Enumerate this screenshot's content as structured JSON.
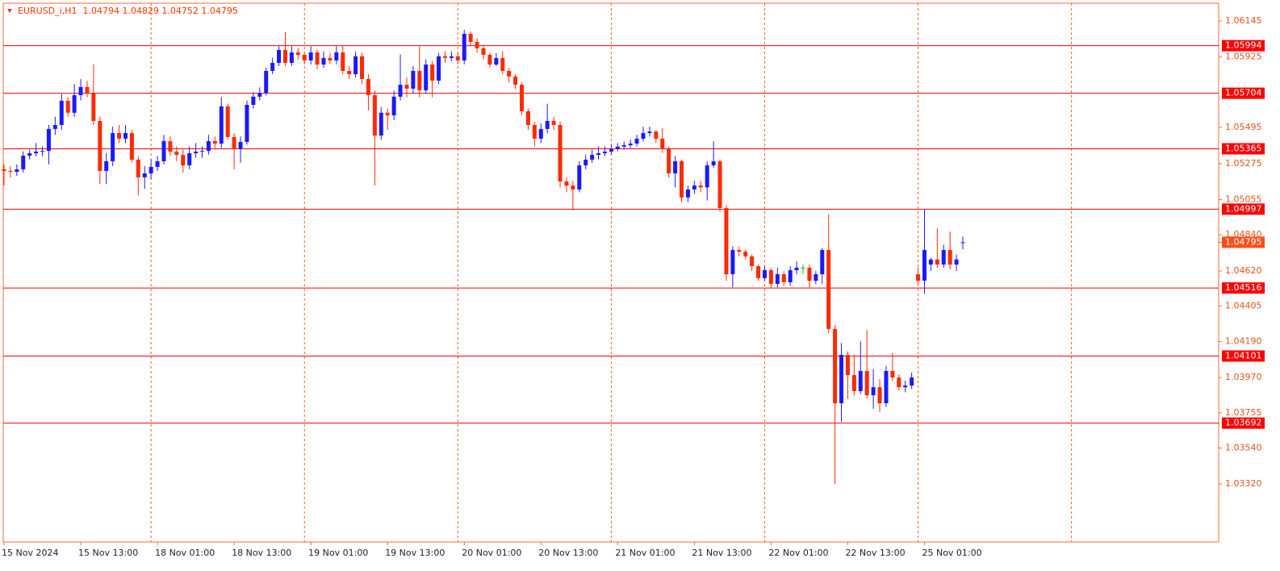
{
  "chart_data": {
    "type": "candlestick",
    "title": "EURUSD_i,H1  1.04794 1.04829 1.04752 1.04795",
    "categories": [
      "15 Nov 2024",
      null,
      null,
      null,
      null,
      null,
      null,
      null,
      null,
      null,
      null,
      null,
      "15 Nov 13:00",
      null,
      null,
      null,
      null,
      null,
      null,
      null,
      null,
      null,
      null,
      null,
      "18 Nov 01:00",
      null,
      null,
      null,
      null,
      null,
      null,
      null,
      null,
      null,
      null,
      null,
      "18 Nov 13:00",
      null,
      null,
      null,
      null,
      null,
      null,
      null,
      null,
      null,
      null,
      null,
      "19 Nov 01:00",
      null,
      null,
      null,
      null,
      null,
      null,
      null,
      null,
      null,
      null,
      null,
      "19 Nov 13:00",
      null,
      null,
      null,
      null,
      null,
      null,
      null,
      null,
      null,
      null,
      null,
      "20 Nov 01:00",
      null,
      null,
      null,
      null,
      null,
      null,
      null,
      null,
      null,
      null,
      null,
      "20 Nov 13:00",
      null,
      null,
      null,
      null,
      null,
      null,
      null,
      null,
      null,
      null,
      null,
      "21 Nov 01:00",
      null,
      null,
      null,
      null,
      null,
      null,
      null,
      null,
      null,
      null,
      null,
      "21 Nov 13:00",
      null,
      null,
      null,
      null,
      null,
      null,
      null,
      null,
      null,
      null,
      null,
      "22 Nov 01:00",
      null,
      null,
      null,
      null,
      null,
      null,
      null,
      null,
      null,
      null,
      null,
      "22 Nov 13:00",
      null,
      null,
      null,
      null,
      null,
      null,
      null,
      null,
      null,
      null,
      null,
      "25 Nov 01:00",
      null,
      null,
      null,
      null,
      null,
      null
    ],
    "ohlc": [
      [
        1.0524,
        1.0527,
        1.05141,
        1.0523
      ],
      [
        1.0523,
        1.0526,
        1.0519,
        1.05225
      ],
      [
        1.05225,
        1.0527,
        1.052,
        1.0524
      ],
      [
        1.0524,
        1.0535,
        1.0522,
        1.05323
      ],
      [
        1.05323,
        1.0536,
        1.053,
        1.05338
      ],
      [
        1.05338,
        1.054,
        1.0532,
        1.05348
      ],
      [
        1.05348,
        1.0538,
        1.0532,
        1.05352
      ],
      [
        1.05352,
        1.0551,
        1.0527,
        1.05486
      ],
      [
        1.05486,
        1.0556,
        1.0545,
        1.0551
      ],
      [
        1.0551,
        1.057,
        1.0548,
        1.05658
      ],
      [
        1.05658,
        1.0568,
        1.0556,
        1.05585
      ],
      [
        1.05585,
        1.0576,
        1.0556,
        1.05692
      ],
      [
        1.05692,
        1.0579,
        1.0566,
        1.05742
      ],
      [
        1.05742,
        1.0578,
        1.0568,
        1.05707
      ],
      [
        1.05707,
        1.0588,
        1.0551,
        1.05535
      ],
      [
        1.05535,
        1.0556,
        1.0515,
        1.0523
      ],
      [
        1.0523,
        1.0534,
        1.0515,
        1.05289
      ],
      [
        1.05289,
        1.055,
        1.0526,
        1.05461
      ],
      [
        1.05461,
        1.0551,
        1.054,
        1.05427
      ],
      [
        1.05427,
        1.0551,
        1.054,
        1.05461
      ],
      [
        1.05461,
        1.0548,
        1.0528,
        1.05299
      ],
      [
        1.05299,
        1.0532,
        1.0508,
        1.05191
      ],
      [
        1.05191,
        1.0526,
        1.0512,
        1.05215
      ],
      [
        1.05215,
        1.053,
        1.0518,
        1.05255
      ],
      [
        1.05255,
        1.0532,
        1.0523,
        1.05289
      ],
      [
        1.05289,
        1.0545,
        1.0527,
        1.05412
      ],
      [
        1.05412,
        1.0544,
        1.0532,
        1.05348
      ],
      [
        1.05348,
        1.0538,
        1.0529,
        1.05328
      ],
      [
        1.05328,
        1.0536,
        1.0522,
        1.05264
      ],
      [
        1.05264,
        1.0538,
        1.0524,
        1.05338
      ],
      [
        1.05338,
        1.054,
        1.0531,
        1.05348
      ],
      [
        1.05348,
        1.0538,
        1.0531,
        1.05352
      ],
      [
        1.05352,
        1.0545,
        1.0533,
        1.05412
      ],
      [
        1.05412,
        1.0544,
        1.0537,
        1.05397
      ],
      [
        1.05397,
        1.0568,
        1.0537,
        1.05624
      ],
      [
        1.05624,
        1.0564,
        1.0542,
        1.05437
      ],
      [
        1.05437,
        1.0546,
        1.0524,
        1.05363
      ],
      [
        1.05363,
        1.0544,
        1.0528,
        1.05407
      ],
      [
        1.05407,
        1.0566,
        1.0539,
        1.05633
      ],
      [
        1.05633,
        1.0571,
        1.0561,
        1.05683
      ],
      [
        1.05683,
        1.0574,
        1.0566,
        1.05707
      ],
      [
        1.05707,
        1.0586,
        1.0569,
        1.0584
      ],
      [
        1.0584,
        1.0592,
        1.0582,
        1.05889
      ],
      [
        1.05889,
        1.0599,
        1.0587,
        1.05968
      ],
      [
        1.05968,
        1.06076,
        1.0587,
        1.05889
      ],
      [
        1.05889,
        1.0599,
        1.0587,
        1.05953
      ],
      [
        1.05953,
        1.0598,
        1.0591,
        1.05938
      ],
      [
        1.05938,
        1.0595,
        1.0588,
        1.05904
      ],
      [
        1.05904,
        1.0599,
        1.0588,
        1.05953
      ],
      [
        1.05953,
        1.0597,
        1.0585,
        1.05879
      ],
      [
        1.05879,
        1.0596,
        1.0586,
        1.05919
      ],
      [
        1.05919,
        1.0595,
        1.0588,
        1.05904
      ],
      [
        1.05904,
        1.0599,
        1.0588,
        1.05953
      ],
      [
        1.05953,
        1.0599,
        1.0582,
        1.0584
      ],
      [
        1.0584,
        1.0587,
        1.0579,
        1.0582
      ],
      [
        1.0582,
        1.0596,
        1.058,
        1.05929
      ],
      [
        1.05929,
        1.0595,
        1.0576,
        1.05791
      ],
      [
        1.05791,
        1.0582,
        1.056,
        1.05692
      ],
      [
        1.05692,
        1.0572,
        1.05141,
        1.05446
      ],
      [
        1.05446,
        1.0562,
        1.0542,
        1.05585
      ],
      [
        1.05585,
        1.0561,
        1.0548,
        1.05569
      ],
      [
        1.05569,
        1.0572,
        1.0554,
        1.05683
      ],
      [
        1.05683,
        1.0594,
        1.0566,
        1.05756
      ],
      [
        1.05756,
        1.058,
        1.0568,
        1.05732
      ],
      [
        1.05732,
        1.0587,
        1.057,
        1.0584
      ],
      [
        1.0584,
        1.0599,
        1.0568,
        1.05722
      ],
      [
        1.05722,
        1.0591,
        1.057,
        1.05879
      ],
      [
        1.05879,
        1.059,
        1.0568,
        1.05781
      ],
      [
        1.05781,
        1.0595,
        1.0576,
        1.05929
      ],
      [
        1.05929,
        1.0596,
        1.0589,
        1.05919
      ],
      [
        1.05919,
        1.0596,
        1.059,
        1.05929
      ],
      [
        1.05929,
        1.0595,
        1.0588,
        1.05904
      ],
      [
        1.05904,
        1.06091,
        1.0588,
        1.06066
      ],
      [
        1.06066,
        1.0608,
        1.0599,
        1.06017
      ],
      [
        1.06017,
        1.0604,
        1.0595,
        1.05978
      ],
      [
        1.05978,
        1.0599,
        1.0591,
        1.05938
      ],
      [
        1.05938,
        1.0595,
        1.0586,
        1.05879
      ],
      [
        1.05879,
        1.0595,
        1.0587,
        1.05919
      ],
      [
        1.05919,
        1.0596,
        1.0582,
        1.0584
      ],
      [
        1.0584,
        1.0586,
        1.0577,
        1.05806
      ],
      [
        1.05806,
        1.0582,
        1.0573,
        1.05756
      ],
      [
        1.05756,
        1.0577,
        1.0557,
        1.05594
      ],
      [
        1.05594,
        1.0561,
        1.0548,
        1.0551
      ],
      [
        1.0551,
        1.0553,
        1.0538,
        1.05427
      ],
      [
        1.05427,
        1.0552,
        1.054,
        1.05486
      ],
      [
        1.05486,
        1.0564,
        1.0546,
        1.05535
      ],
      [
        1.05535,
        1.0556,
        1.0548,
        1.0551
      ],
      [
        1.0551,
        1.0553,
        1.0513,
        1.05166
      ],
      [
        1.05166,
        1.0519,
        1.051,
        1.05141
      ],
      [
        1.05141,
        1.0517,
        1.0499,
        1.05117
      ],
      [
        1.05117,
        1.0529,
        1.051,
        1.05264
      ],
      [
        1.05264,
        1.0533,
        1.0524,
        1.05299
      ],
      [
        1.05299,
        1.0536,
        1.0528,
        1.05328
      ],
      [
        1.05328,
        1.0538,
        1.053,
        1.05338
      ],
      [
        1.05338,
        1.0538,
        1.0532,
        1.05348
      ],
      [
        1.05348,
        1.0539,
        1.0533,
        1.05363
      ],
      [
        1.05363,
        1.054,
        1.0535,
        1.05378
      ],
      [
        1.05378,
        1.0541,
        1.0536,
        1.05387
      ],
      [
        1.05387,
        1.0542,
        1.0537,
        1.05397
      ],
      [
        1.05397,
        1.0545,
        1.0538,
        1.05427
      ],
      [
        1.05427,
        1.055,
        1.0541,
        1.05461
      ],
      [
        1.05461,
        1.055,
        1.0544,
        1.0547
      ],
      [
        1.0547,
        1.0548,
        1.054,
        1.05427
      ],
      [
        1.05427,
        1.0549,
        1.0534,
        1.05363
      ],
      [
        1.05363,
        1.0538,
        1.0519,
        1.05215
      ],
      [
        1.05215,
        1.0532,
        1.0513,
        1.05289
      ],
      [
        1.05289,
        1.053,
        1.0504,
        1.05068
      ],
      [
        1.05068,
        1.0514,
        1.0504,
        1.05117
      ],
      [
        1.05117,
        1.0517,
        1.0509,
        1.05141
      ],
      [
        1.05141,
        1.0517,
        1.051,
        1.0513
      ],
      [
        1.0513,
        1.0529,
        1.0505,
        1.05264
      ],
      [
        1.05264,
        1.0541,
        1.0525,
        1.05289
      ],
      [
        1.05289,
        1.053,
        1.0498,
        1.05004
      ],
      [
        1.05004,
        1.0502,
        1.0456,
        1.046
      ],
      [
        1.046,
        1.0477,
        1.0452,
        1.04748
      ],
      [
        1.04748,
        1.0477,
        1.0471,
        1.04738
      ],
      [
        1.04738,
        1.0475,
        1.0469,
        1.04709
      ],
      [
        1.04709,
        1.0472,
        1.0462,
        1.04649
      ],
      [
        1.04649,
        1.0466,
        1.0456,
        1.04576
      ],
      [
        1.04576,
        1.0465,
        1.0456,
        1.04625
      ],
      [
        1.04625,
        1.0464,
        1.0452,
        1.04541
      ],
      [
        1.04541,
        1.0464,
        1.0452,
        1.046
      ],
      [
        1.046,
        1.0462,
        1.0453,
        1.04551
      ],
      [
        1.04551,
        1.0465,
        1.0453,
        1.04625
      ],
      [
        1.04625,
        1.0468,
        1.046,
        1.0464
      ],
      [
        1.0464,
        1.0466,
        1.046,
        1.0464
      ],
      [
        1.0464,
        1.0466,
        1.0452,
        1.0456
      ],
      [
        1.0456,
        1.0462,
        1.0454,
        1.046
      ],
      [
        1.046,
        1.0476,
        1.0454,
        1.04748
      ],
      [
        1.04748,
        1.04965,
        1.0424,
        1.04266
      ],
      [
        1.04266,
        1.0429,
        1.03321,
        1.03813
      ],
      [
        1.03813,
        1.0418,
        1.037,
        1.04108
      ],
      [
        1.04108,
        1.0413,
        1.0384,
        1.03985
      ],
      [
        1.03985,
        1.0411,
        1.0386,
        1.03887
      ],
      [
        1.03887,
        1.0419,
        1.0387,
        1.0401
      ],
      [
        1.0401,
        1.0426,
        1.0384,
        1.03862
      ],
      [
        1.03862,
        1.0402,
        1.0378,
        1.03911
      ],
      [
        1.03911,
        1.0396,
        1.0376,
        1.03813
      ],
      [
        1.03813,
        1.0404,
        1.0379,
        1.0401
      ],
      [
        1.0401,
        1.0412,
        1.0395,
        1.0397
      ],
      [
        1.0397,
        1.0399,
        1.0389,
        1.03911
      ],
      [
        1.03911,
        1.0395,
        1.0388,
        1.03921
      ],
      [
        1.03921,
        1.04,
        1.039,
        1.0397
      ],
      [
        1.046,
        1.0464,
        1.0454,
        1.04561
      ],
      [
        1.04561,
        1.04995,
        1.0448,
        1.04748
      ],
      [
        1.04659,
        1.047,
        1.0462,
        1.0469
      ],
      [
        1.0469,
        1.0488,
        1.0464,
        1.04659
      ],
      [
        1.04659,
        1.0478,
        1.0464,
        1.04748
      ],
      [
        1.04748,
        1.0486,
        1.0463,
        1.04659
      ],
      [
        1.04659,
        1.0472,
        1.0462,
        1.0469
      ],
      [
        1.04794,
        1.04829,
        1.04752,
        1.04795
      ]
    ],
    "up_color": "#1a1aff",
    "down_color": "#ff2a00",
    "doji_color": "#20b020",
    "ylim": [
      1.02967,
      1.06253
    ],
    "yticks": [
      1.06145,
      1.05925,
      1.05495,
      1.05275,
      1.05055,
      {
        "value": 1.0484,
        "label": "1.04840"
      },
      {
        "value": 1.0462,
        "label": "1.04620"
      },
      1.04405,
      {
        "value": 1.0419,
        "label": "1.04190"
      },
      {
        "value": 1.0397,
        "label": "1.03970"
      },
      1.03755,
      {
        "value": 1.0354,
        "label": "1.03540"
      },
      {
        "value": 1.0332,
        "label": "1.03320"
      }
    ],
    "levels": [
      1.05994,
      1.05704,
      1.05365,
      1.04997,
      1.04516,
      1.04101,
      1.03692
    ],
    "level_color": "#ff0000",
    "last_price": 1.04795,
    "last_price_color": "#ff4d1a",
    "grid": true,
    "grid_color": "#ff5a1f"
  }
}
